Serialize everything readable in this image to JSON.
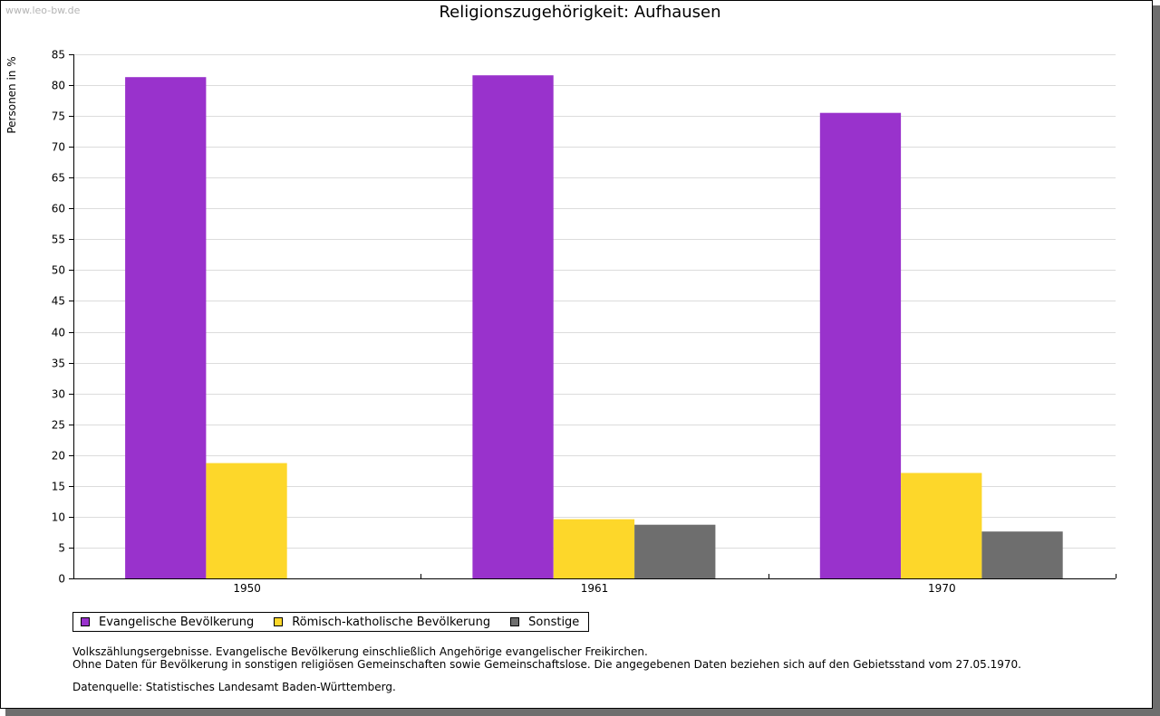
{
  "watermark": "www.leo-bw.de",
  "chart_data": {
    "type": "bar",
    "title": "Religionszugehörigkeit: Aufhausen",
    "xlabel": "",
    "ylabel": "Personen in %",
    "ylim": [
      0,
      85
    ],
    "ytick_step": 5,
    "grid": true,
    "legend_position": "bottom-left",
    "categories": [
      "1950",
      "1961",
      "1970"
    ],
    "series": [
      {
        "name": "Evangelische Bevölkerung",
        "color": "#9932cc",
        "values": [
          81.3,
          81.6,
          75.5
        ]
      },
      {
        "name": "Römisch-katholische Bevölkerung",
        "color": "#fdd72a",
        "values": [
          18.7,
          9.6,
          17.1
        ]
      },
      {
        "name": "Sonstige",
        "color": "#6e6e6e",
        "values": [
          null,
          8.7,
          7.6
        ]
      }
    ]
  },
  "notes": [
    "Volkszählungsergebnisse. Evangelische Bevölkerung einschließlich Angehörige evangelischer Freikirchen.",
    "Ohne Daten für Bevölkerung in sonstigen religiösen Gemeinschaften sowie Gemeinschaftslose. Die angegebenen Daten beziehen sich auf den Gebietsstand vom 27.05.1970."
  ],
  "source": "Datenquelle: Statistisches Landesamt Baden-Württemberg."
}
